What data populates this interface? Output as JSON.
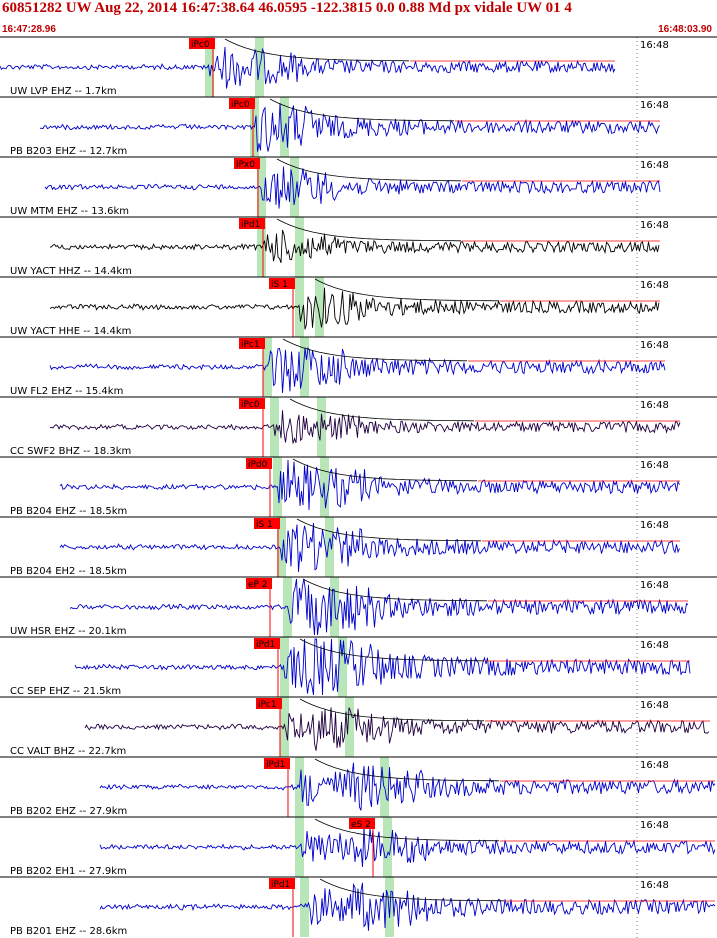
{
  "header": {
    "title": "60851282 UW Aug 22, 2014 16:47:38.64    46.0595 -122.3815  0.0 0.88 Md px vidale UW 01    4",
    "start_time": "16:47:28.96",
    "end_time": "16:48:03.90"
  },
  "colors": {
    "accent": "#c00000",
    "trace_blue": "#0000cc",
    "trace_black": "#000000",
    "trace_purple": "#200040",
    "pick_box": "#ff0000",
    "window_green": "#b8e6b8"
  },
  "traces": [
    {
      "label": "UW LVP EHZ -- 1.7km",
      "tick": "16:48",
      "pick": "iPc0",
      "s_pick": "",
      "color": "#0000cc"
    },
    {
      "label": "PB B203 EHZ -- 12.7km",
      "tick": "16:48",
      "pick": "iPc0",
      "s_pick": "",
      "color": "#0000cc"
    },
    {
      "label": "UW MTM EHZ -- 13.6km",
      "tick": "16:48",
      "pick": "iPx0",
      "s_pick": "",
      "color": "#0000cc"
    },
    {
      "label": "UW YACT HHZ -- 14.4km",
      "tick": "16:48",
      "pick": "iPd1",
      "s_pick": "",
      "color": "#000000"
    },
    {
      "label": "UW YACT HHE -- 14.4km",
      "tick": "16:48",
      "pick": "iS 1",
      "s_pick": "",
      "color": "#000000"
    },
    {
      "label": "UW FL2 EHZ -- 15.4km",
      "tick": "16:48",
      "pick": "iPc1",
      "s_pick": "",
      "color": "#0000cc"
    },
    {
      "label": "CC SWF2 BHZ -- 18.3km",
      "tick": "16:48",
      "pick": "iPc0",
      "s_pick": "",
      "color": "#200040"
    },
    {
      "label": "PB B204 EHZ -- 18.5km",
      "tick": "16:48",
      "pick": "iPd0",
      "s_pick": "",
      "color": "#0000cc"
    },
    {
      "label": "PB B204 EH2 -- 18.5km",
      "tick": "16:48",
      "pick": "iS 1",
      "s_pick": "",
      "color": "#0000cc"
    },
    {
      "label": "UW HSR EHZ -- 20.1km",
      "tick": "16:48",
      "pick": "eP 2",
      "s_pick": "",
      "color": "#0000cc"
    },
    {
      "label": "CC SEP EHZ -- 21.5km",
      "tick": "16:48",
      "pick": "iPd1",
      "s_pick": "",
      "color": "#0000cc"
    },
    {
      "label": "CC VALT BHZ -- 22.7km",
      "tick": "16:48",
      "pick": "iPc1",
      "s_pick": "",
      "color": "#200040"
    },
    {
      "label": "PB B202 EHZ -- 27.9km",
      "tick": "16:48",
      "pick": "iPd1",
      "s_pick": "",
      "color": "#0000cc"
    },
    {
      "label": "PB B202 EH1 -- 27.9km",
      "tick": "16:48",
      "pick": "eS 2",
      "s_pick": "",
      "color": "#0000cc"
    },
    {
      "label": "PB B201 EHZ -- 28.6km",
      "tick": "16:48",
      "pick": "iPd1",
      "s_pick": "",
      "color": "#0000cc"
    }
  ]
}
